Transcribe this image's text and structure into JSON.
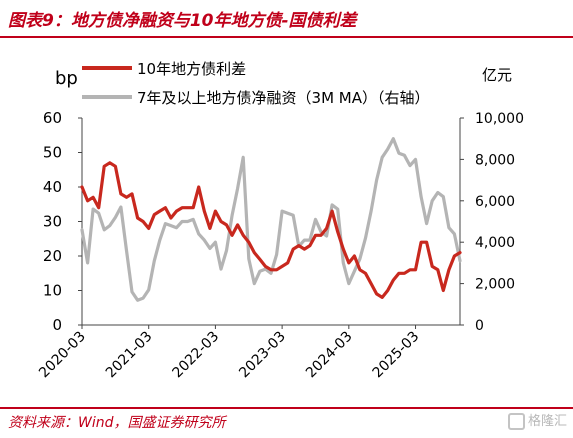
{
  "title": "图表9：地方债净融资与10年地方债-国债利差",
  "source": "资料来源：Wind，国盛证券研究所",
  "watermark": "格隆汇",
  "colors": {
    "red": "#c8281e",
    "gray": "#b4b4b4",
    "brand": "#c0001a"
  },
  "chart_data": {
    "type": "line",
    "left_unit": "bp",
    "right_unit": "亿元",
    "left_ylim": [
      0,
      60
    ],
    "right_ylim": [
      0,
      10000
    ],
    "left_ticks": [
      "0",
      "10",
      "20",
      "30",
      "40",
      "50",
      "60"
    ],
    "right_ticks": [
      "0",
      "2,000",
      "4,000",
      "6,000",
      "8,000",
      "10,000"
    ],
    "x_ticks": [
      "2020-03",
      "2021-03",
      "2022-03",
      "2023-03",
      "2024-03",
      "2025-03"
    ],
    "x_start": "2020-03",
    "series": [
      {
        "name": "10年地方债利差",
        "axis": "left",
        "color": "#c8281e",
        "x": [
          "2020-03",
          "2020-04",
          "2020-05",
          "2020-06",
          "2020-07",
          "2020-08",
          "2020-09",
          "2020-10",
          "2020-11",
          "2020-12",
          "2021-01",
          "2021-02",
          "2021-03",
          "2021-04",
          "2021-05",
          "2021-06",
          "2021-07",
          "2021-08",
          "2021-09",
          "2021-10",
          "2021-11",
          "2021-12",
          "2022-01",
          "2022-02",
          "2022-03",
          "2022-04",
          "2022-05",
          "2022-06",
          "2022-07",
          "2022-08",
          "2022-09",
          "2022-10",
          "2022-11",
          "2022-12",
          "2023-01",
          "2023-02",
          "2023-03",
          "2023-04",
          "2023-05",
          "2023-06",
          "2023-07",
          "2023-08",
          "2023-09",
          "2023-10",
          "2023-11",
          "2023-12",
          "2024-01",
          "2024-02",
          "2024-03",
          "2024-04",
          "2024-05",
          "2024-06",
          "2024-07",
          "2024-08",
          "2024-09",
          "2024-10",
          "2024-11",
          "2024-12",
          "2025-01",
          "2025-02",
          "2025-03",
          "2025-04",
          "2025-05",
          "2025-06",
          "2025-07",
          "2025-08",
          "2025-09",
          "2025-10",
          "2025-11"
        ],
        "values": [
          40,
          36,
          37,
          34,
          46,
          47,
          46,
          38,
          37,
          38,
          31,
          30,
          28,
          32,
          33,
          34,
          31,
          33,
          34,
          34,
          34,
          40,
          33,
          28,
          33,
          30,
          29,
          26,
          29,
          26,
          24,
          21,
          19,
          17,
          16,
          16,
          17,
          18,
          22,
          23,
          22,
          23,
          26,
          26,
          28,
          33,
          27,
          22,
          18,
          20,
          16,
          15,
          12,
          9,
          8,
          10,
          13,
          15,
          15,
          16,
          16,
          24,
          24,
          17,
          16,
          10,
          16,
          20,
          21
        ]
      },
      {
        "name": "7年及以上地方债净融资（3M MA）（右轴）",
        "axis": "right",
        "color": "#b4b4b4",
        "x": [
          "2020-03",
          "2020-04",
          "2020-05",
          "2020-06",
          "2020-07",
          "2020-08",
          "2020-09",
          "2020-10",
          "2020-11",
          "2020-12",
          "2021-01",
          "2021-02",
          "2021-03",
          "2021-04",
          "2021-05",
          "2021-06",
          "2021-07",
          "2021-08",
          "2021-09",
          "2021-10",
          "2021-11",
          "2021-12",
          "2022-01",
          "2022-02",
          "2022-03",
          "2022-04",
          "2022-05",
          "2022-06",
          "2022-07",
          "2022-08",
          "2022-09",
          "2022-10",
          "2022-11",
          "2022-12",
          "2023-01",
          "2023-02",
          "2023-03",
          "2023-04",
          "2023-05",
          "2023-06",
          "2023-07",
          "2023-08",
          "2023-09",
          "2023-10",
          "2023-11",
          "2023-12",
          "2024-01",
          "2024-02",
          "2024-03",
          "2024-04",
          "2024-05",
          "2024-06",
          "2024-07",
          "2024-08",
          "2024-09",
          "2024-10",
          "2024-11",
          "2024-12",
          "2025-01",
          "2025-02",
          "2025-03",
          "2025-04",
          "2025-05",
          "2025-06",
          "2025-07",
          "2025-08",
          "2025-09",
          "2025-10",
          "2025-11"
        ],
        "values": [
          4600,
          3000,
          5600,
          5400,
          4600,
          4800,
          5200,
          5700,
          3600,
          1600,
          1200,
          1300,
          1700,
          3100,
          4100,
          4900,
          4800,
          4700,
          5000,
          5000,
          5100,
          4400,
          4100,
          3700,
          4000,
          2700,
          3600,
          5300,
          6600,
          8100,
          3200,
          2000,
          2600,
          2700,
          2500,
          3400,
          5500,
          5400,
          5300,
          3800,
          4100,
          4100,
          5100,
          4500,
          4300,
          5800,
          5600,
          3000,
          2000,
          2600,
          3200,
          4200,
          5500,
          7000,
          8100,
          8500,
          9000,
          8300,
          8200,
          7700,
          8000,
          6200,
          4900,
          6000,
          6400,
          6200,
          4700,
          4400,
          3100
        ]
      }
    ]
  }
}
